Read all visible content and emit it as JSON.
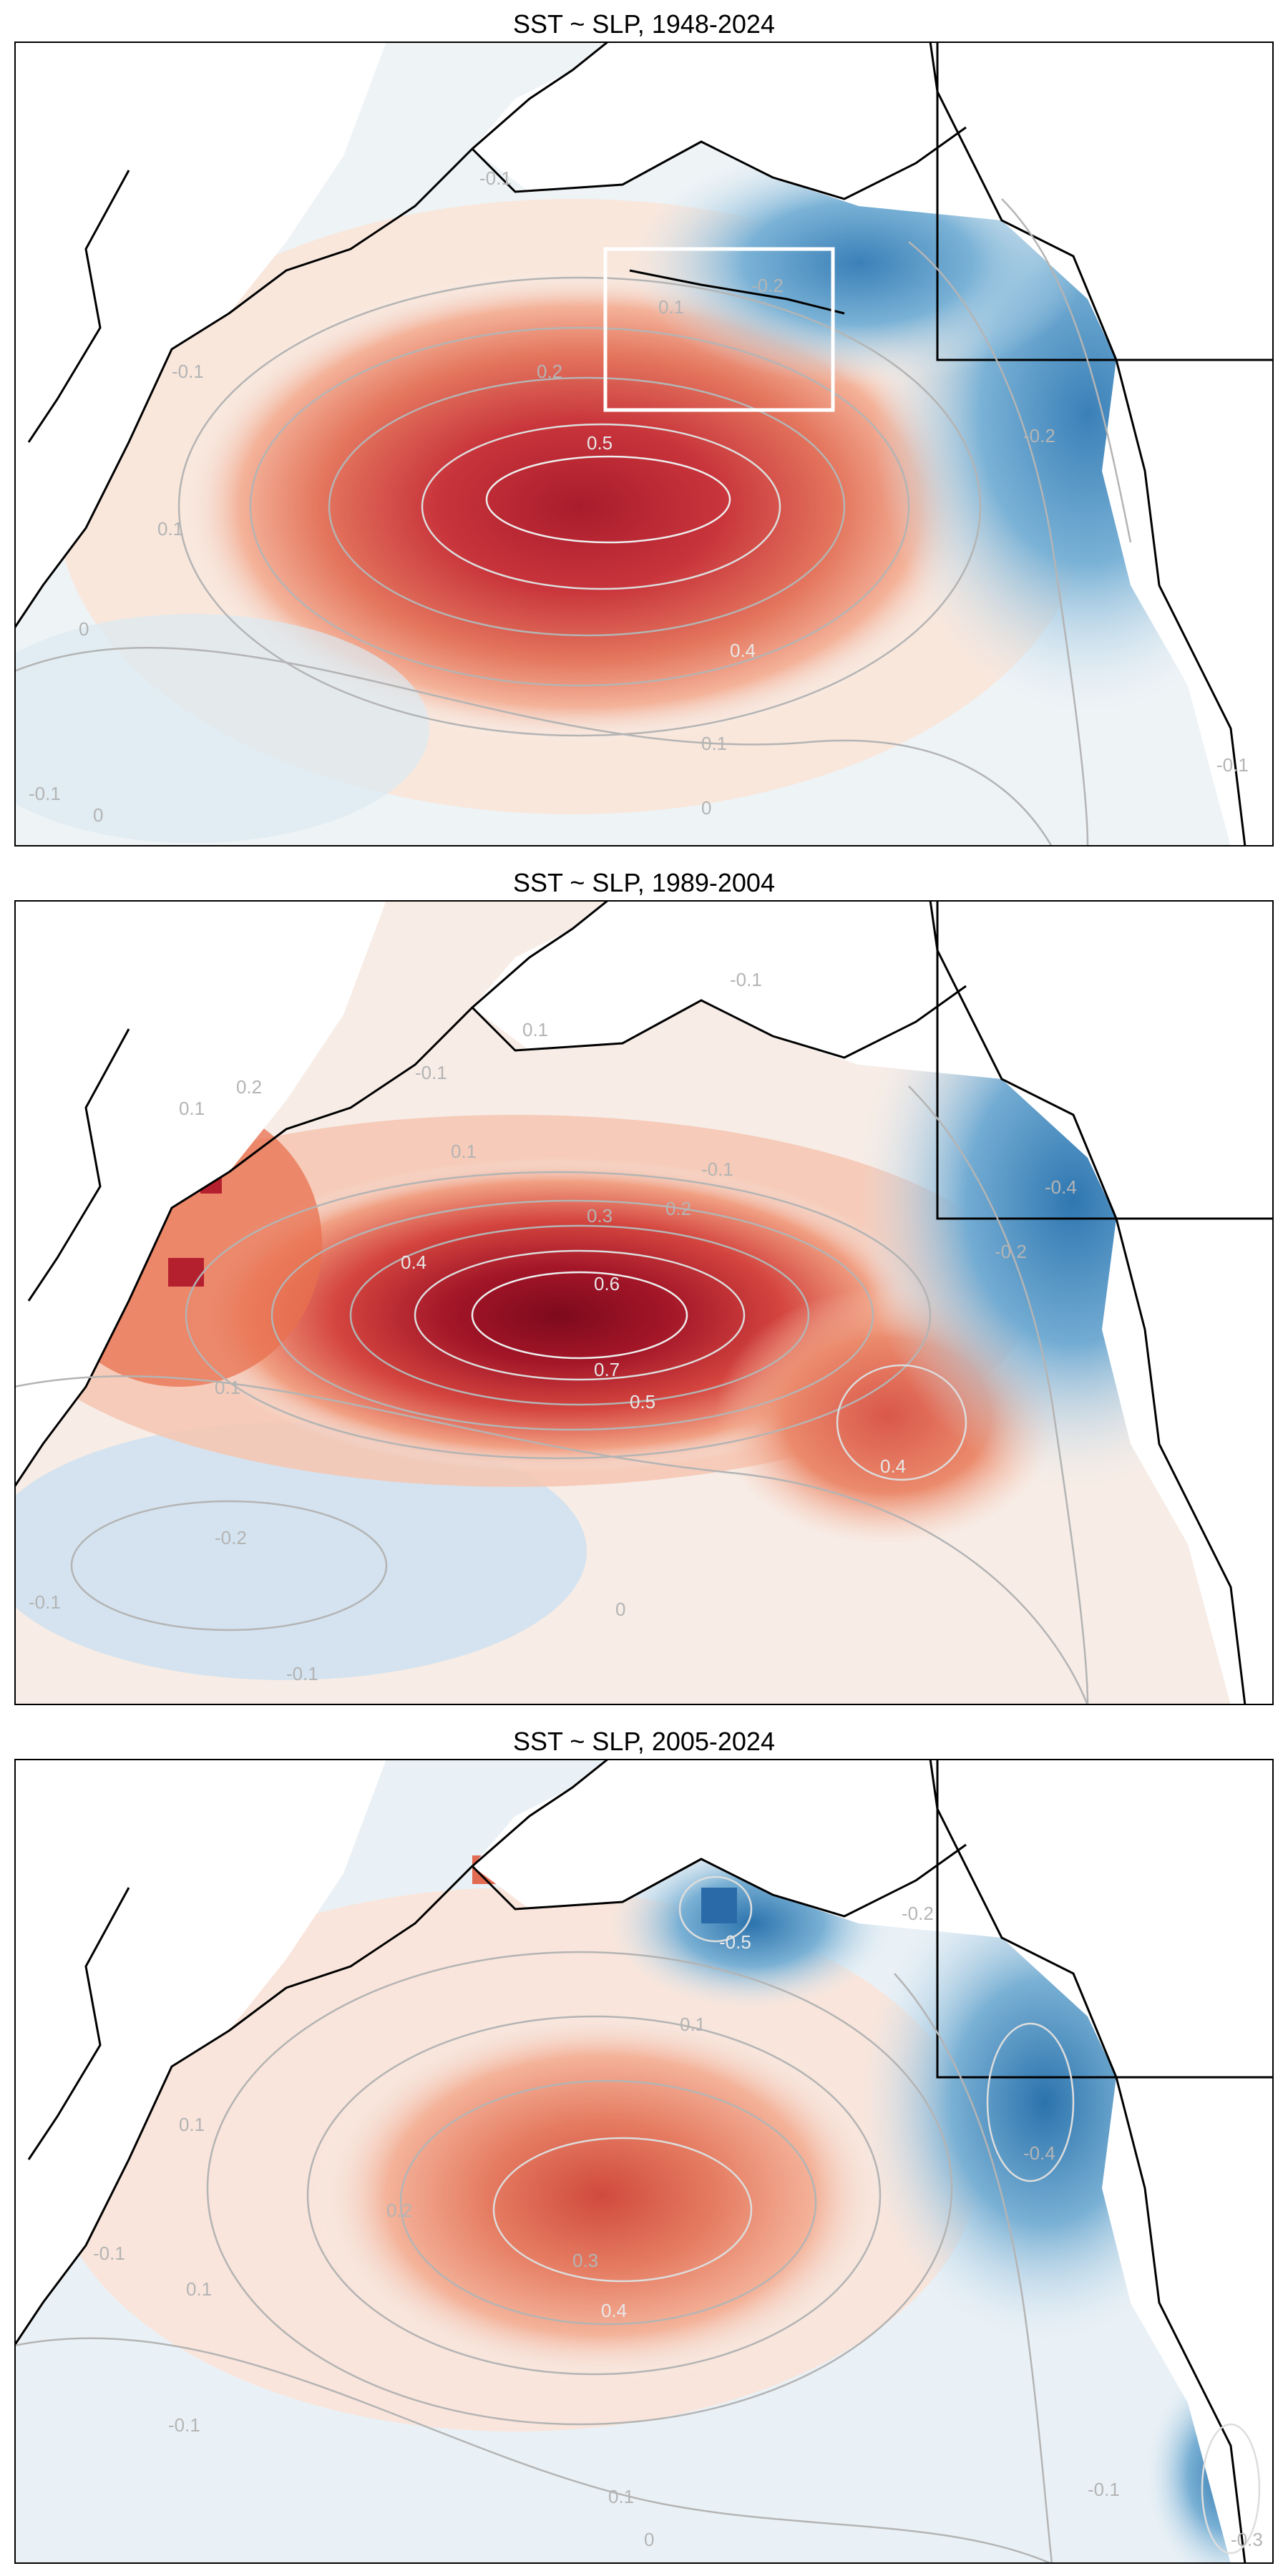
{
  "panels": [
    {
      "title": "SST ~ SLP, 1948-2024",
      "has_box": true,
      "contour_labels": [
        "-0.1",
        "-0.2",
        "-0.1",
        "0.1",
        "0.2",
        "0.5",
        "0.4",
        "0.1",
        "0",
        "0",
        "-0.1",
        "0",
        "0.1",
        "-0.1",
        "-0.2"
      ],
      "max_value": "0.5"
    },
    {
      "title": "SST ~ SLP, 1989-2004",
      "has_box": false,
      "contour_labels": [
        "0.1",
        "-0.1",
        "0.1",
        "0.2",
        "0.1",
        "-0.1",
        "0.3",
        "0.2",
        "0.4",
        "0.6",
        "0.7",
        "0.5",
        "0.4",
        "-0.4",
        "-0.2",
        "0.1",
        "-0.2",
        "-0.1",
        "-0.1",
        "0",
        "-0.1"
      ],
      "max_value": "0.7"
    },
    {
      "title": "SST ~ SLP, 2005-2024",
      "has_box": false,
      "contour_labels": [
        "-0.5",
        "-0.2",
        "0.1",
        "-0.4",
        "0.2",
        "0.3",
        "0.4",
        "-0.1",
        "0.1",
        "-0.1",
        "0.1",
        "-0.1",
        "-0.3",
        "0",
        "0.1"
      ],
      "max_value": "0.4"
    }
  ],
  "colors": {
    "strong_red": "#8b0a1f",
    "red": "#c8343b",
    "salmon": "#f4a582",
    "light_red": "#fbe3d6",
    "neutral": "#f4f4f4",
    "light_blue": "#d7e7f1",
    "blue": "#6fa8d0",
    "dark_blue": "#1f5c9e",
    "contour": "#b4b4b4",
    "coast": "#000000",
    "box": "#ffffff"
  }
}
